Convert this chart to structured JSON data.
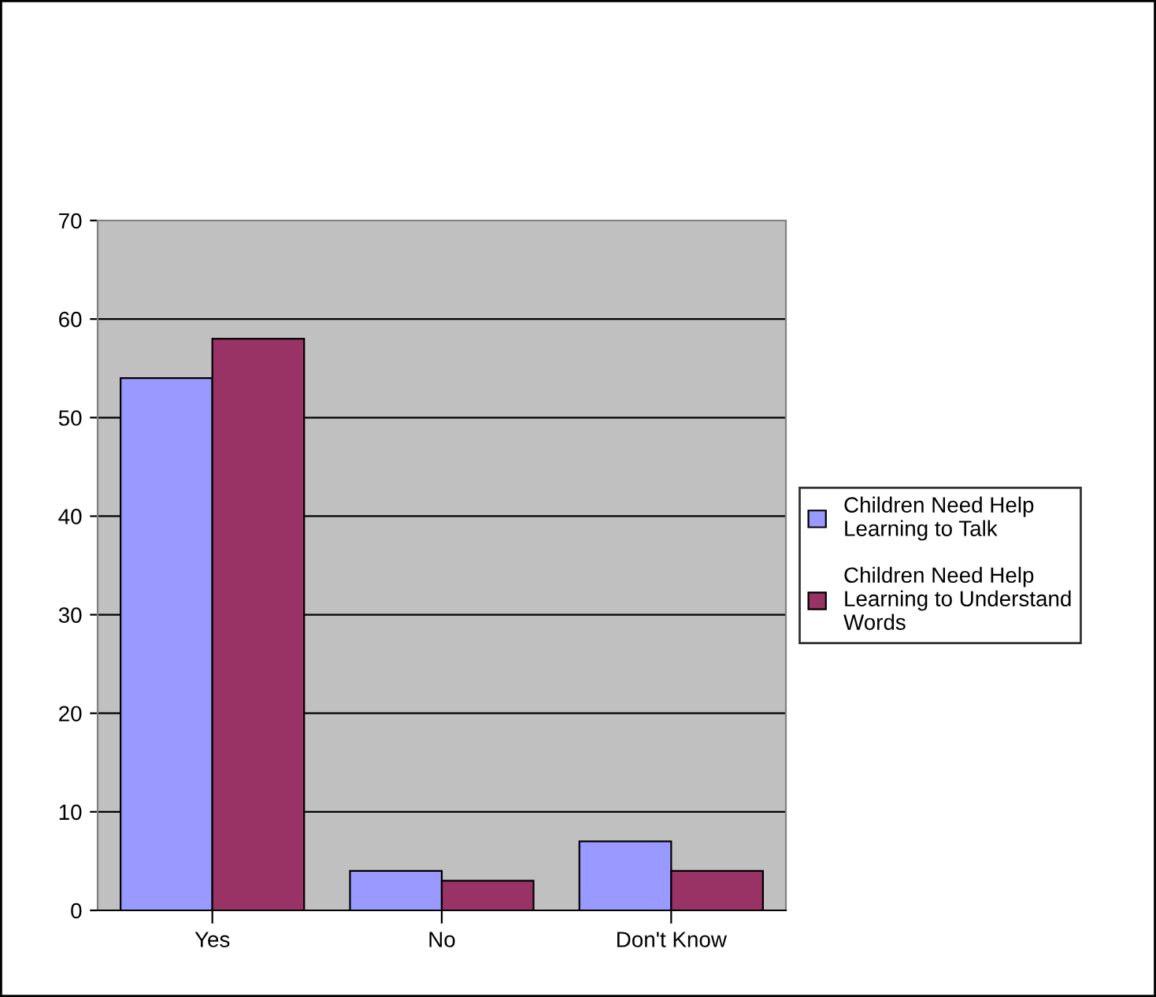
{
  "chart_data": {
    "type": "bar",
    "categories": [
      "Yes",
      "No",
      "Don't Know"
    ],
    "series": [
      {
        "name": "Children Need Help\nLearning to Talk",
        "color": "#9999ff",
        "values": [
          54,
          4,
          7
        ]
      },
      {
        "name": "Children Need Help\nLearning to Understand\nWords",
        "color": "#993366",
        "values": [
          58,
          3,
          4
        ]
      }
    ],
    "ylim": [
      0,
      70
    ],
    "yticks": [
      0,
      10,
      20,
      30,
      40,
      50,
      60,
      70
    ],
    "grid": "y",
    "legend": "right"
  }
}
